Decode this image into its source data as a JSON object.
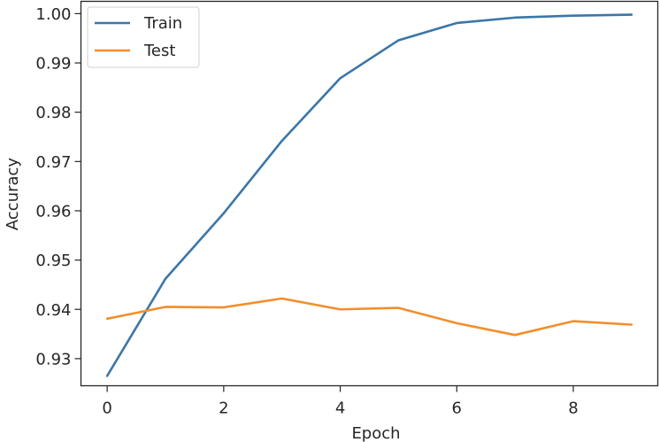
{
  "chart_data": {
    "type": "line",
    "title": "",
    "xlabel": "Epoch",
    "ylabel": "Accuracy",
    "xlim": [
      -0.45,
      9.45
    ],
    "ylim": [
      0.9245,
      1.0025
    ],
    "grid": false,
    "legend_position": "top-left",
    "xticks": [
      {
        "value": 0,
        "label": "0"
      },
      {
        "value": 2,
        "label": "2"
      },
      {
        "value": 4,
        "label": "4"
      },
      {
        "value": 6,
        "label": "6"
      },
      {
        "value": 8,
        "label": "8"
      }
    ],
    "yticks": [
      {
        "value": 0.93,
        "label": "0.93"
      },
      {
        "value": 0.94,
        "label": "0.94"
      },
      {
        "value": 0.95,
        "label": "0.95"
      },
      {
        "value": 0.96,
        "label": "0.96"
      },
      {
        "value": 0.97,
        "label": "0.97"
      },
      {
        "value": 0.98,
        "label": "0.98"
      },
      {
        "value": 0.99,
        "label": "0.99"
      },
      {
        "value": 1.0,
        "label": "1.00"
      }
    ],
    "x": [
      0,
      1,
      2,
      3,
      4,
      5,
      6,
      7,
      8,
      9
    ],
    "series": [
      {
        "name": "Train",
        "color": "#3b76a8",
        "values": [
          0.9265,
          0.9462,
          0.9595,
          0.9742,
          0.9869,
          0.9946,
          0.9981,
          0.9992,
          0.9996,
          0.9998
        ]
      },
      {
        "name": "Test",
        "color": "#f28e2b",
        "values": [
          0.9381,
          0.9405,
          0.9404,
          0.9422,
          0.94,
          0.9403,
          0.9372,
          0.9348,
          0.9376,
          0.9369
        ]
      }
    ]
  }
}
